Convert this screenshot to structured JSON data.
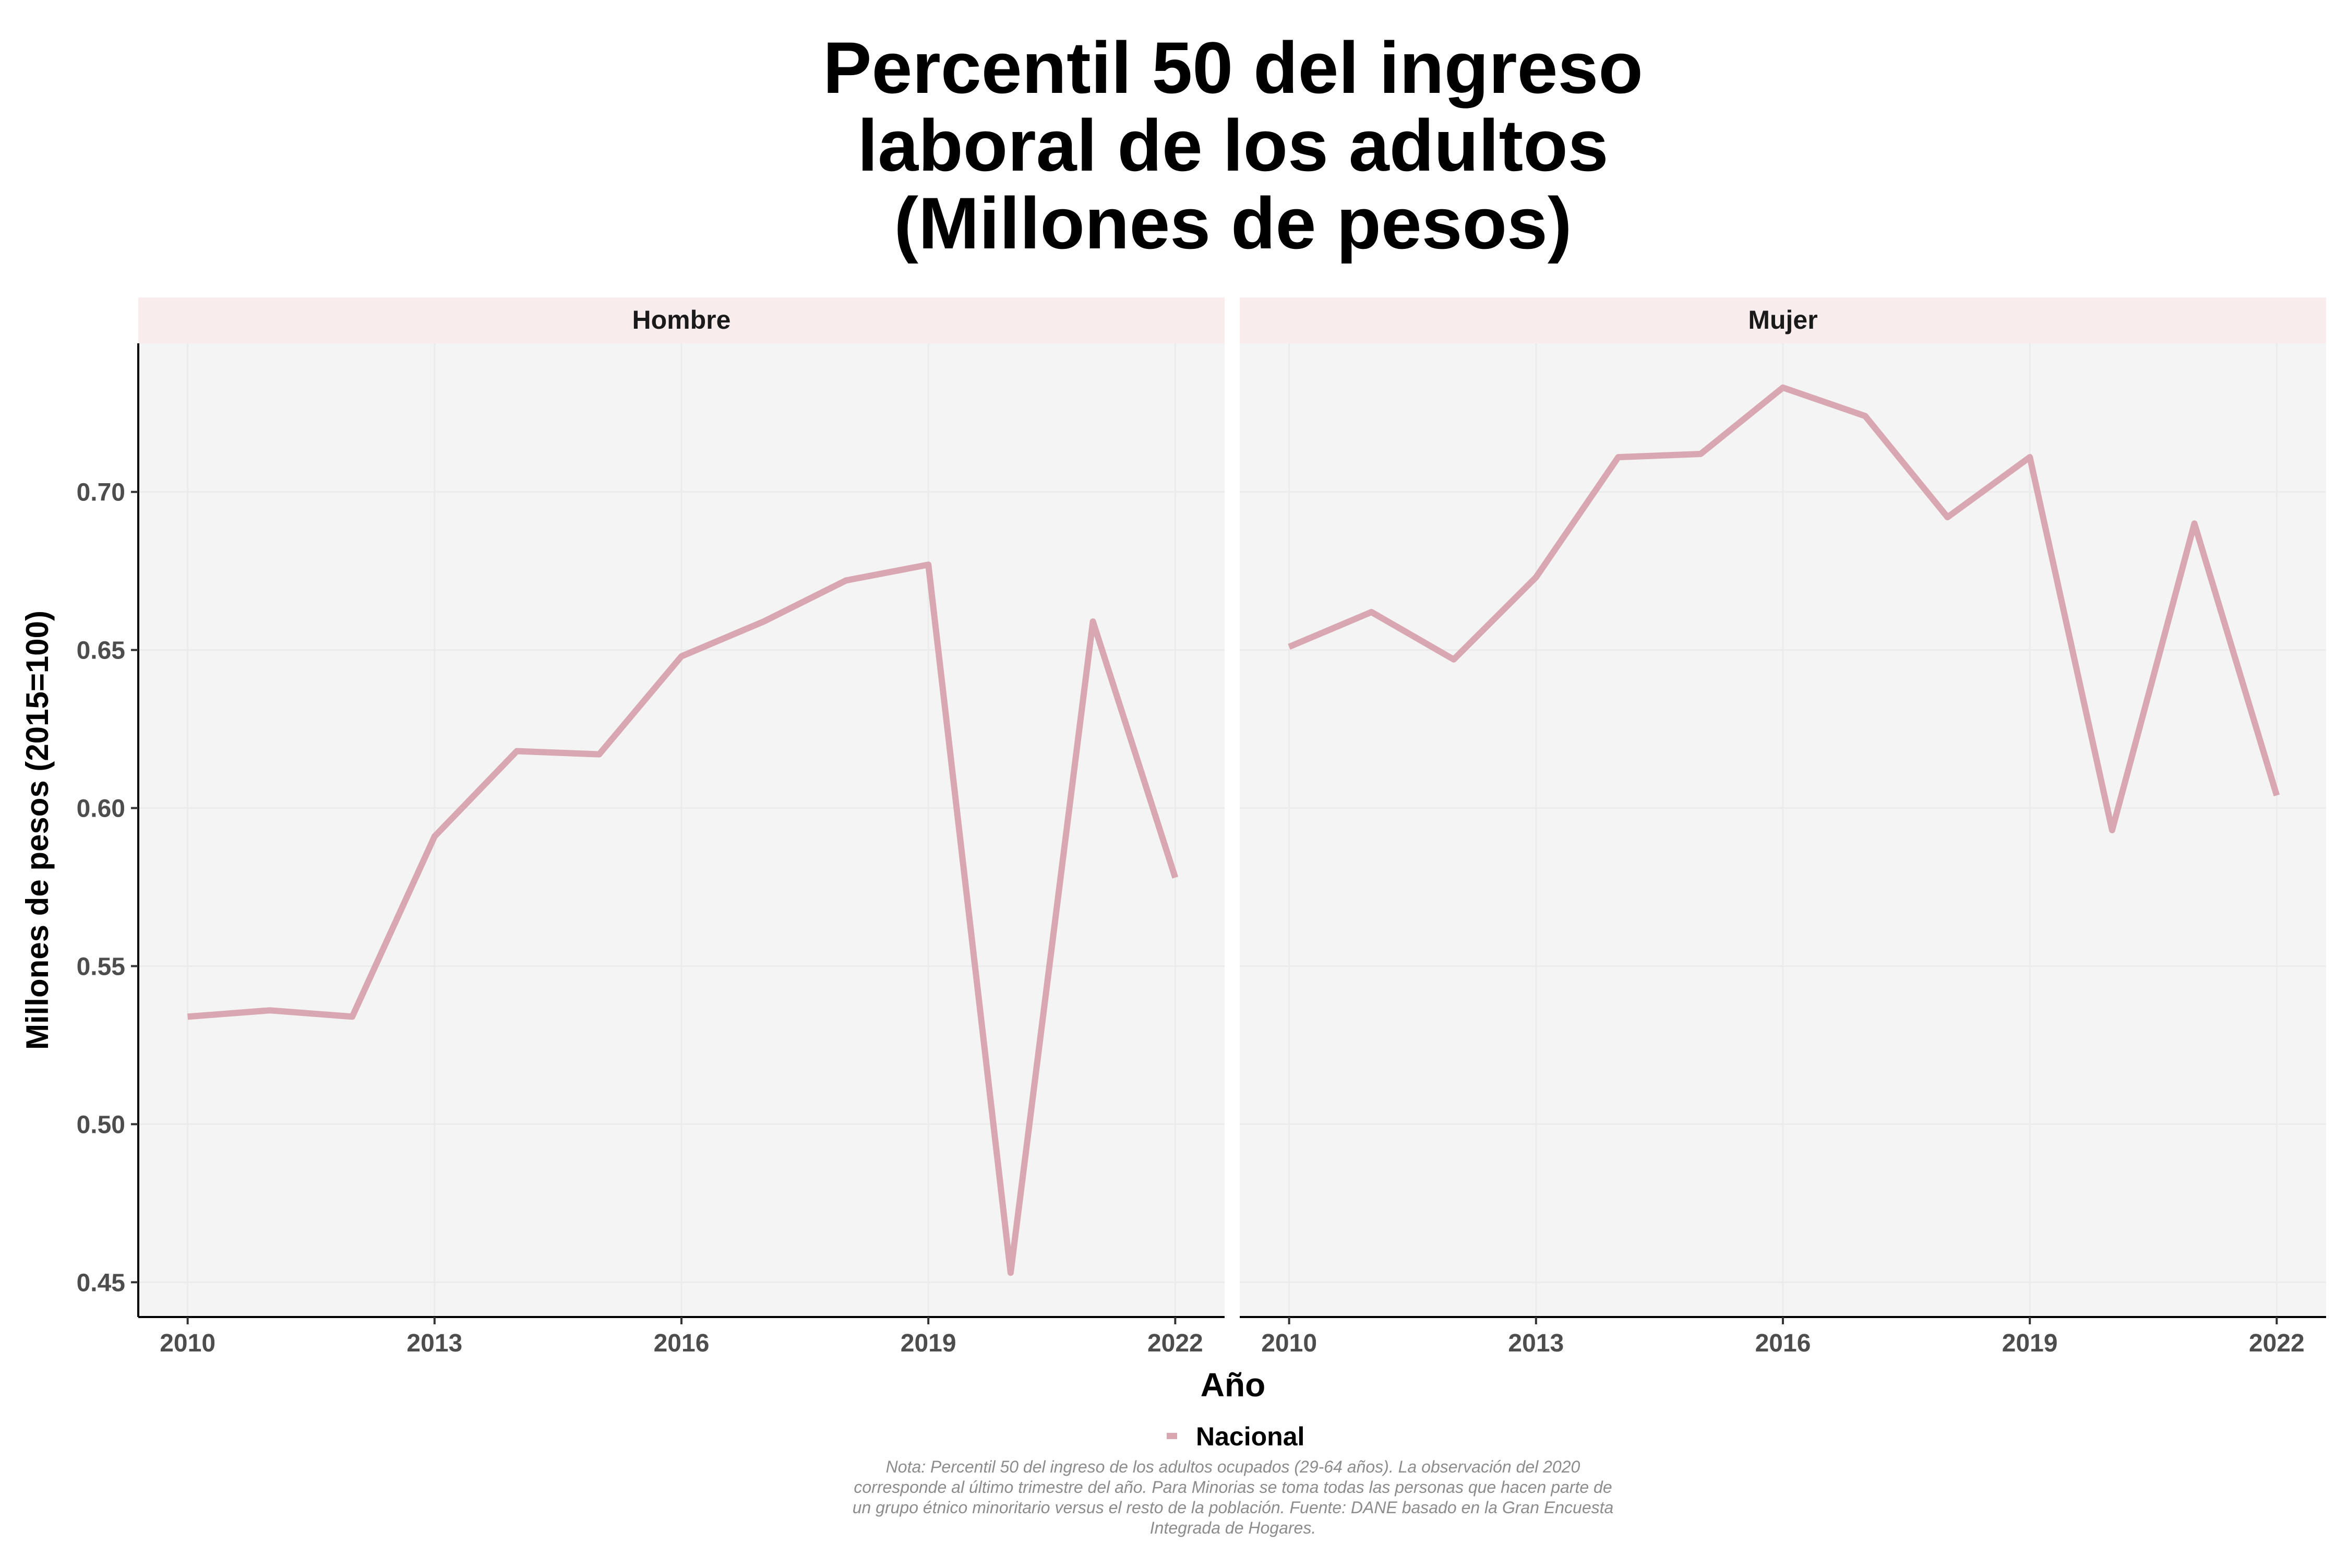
{
  "chart_data": {
    "type": "line",
    "title_lines": [
      "Percentil 50 del ingreso",
      "laboral de los adultos",
      "(Millones de pesos)"
    ],
    "xlabel": "Año",
    "ylabel": "Millones de pesos (2015=100)",
    "x_ticks": [
      2010,
      2013,
      2016,
      2019,
      2022
    ],
    "y_ticks": [
      0.45,
      0.5,
      0.55,
      0.6,
      0.65,
      0.7
    ],
    "y_tick_labels": [
      "0.45",
      "0.50",
      "0.55",
      "0.60",
      "0.65",
      "0.70"
    ],
    "xlim": [
      2009.4,
      2022.6
    ],
    "ylim": [
      0.439,
      0.747
    ],
    "grid": true,
    "legend": {
      "position": "bottom",
      "entries": [
        {
          "name": "Nacional",
          "color": "#d8a7b1"
        }
      ]
    },
    "colors": {
      "line": "#d8a7b1",
      "strip": "#f9ecec",
      "panel": "#f4f4f4",
      "note": "#8c8c8c"
    },
    "x": [
      2010,
      2011,
      2012,
      2013,
      2014,
      2015,
      2016,
      2017,
      2018,
      2019,
      2020,
      2021,
      2022
    ],
    "panels": [
      {
        "name": "Hombre",
        "series": [
          {
            "name": "Nacional",
            "values": [
              0.534,
              0.536,
              0.534,
              0.591,
              0.618,
              0.617,
              0.648,
              0.659,
              0.672,
              0.677,
              0.453,
              0.659,
              0.578
            ]
          }
        ]
      },
      {
        "name": "Mujer",
        "series": [
          {
            "name": "Nacional",
            "values": [
              0.651,
              0.662,
              0.647,
              0.673,
              0.711,
              0.712,
              0.733,
              0.724,
              0.692,
              0.711,
              0.593,
              0.69,
              0.604
            ]
          }
        ]
      }
    ],
    "note_lines": [
      "Nota: Percentil 50 del ingreso de los adultos ocupados (29-64 años). La observación del 2020",
      "corresponde al último trimestre del año. Para Minorias se toma todas las personas que hacen parte de",
      "un grupo étnico minoritario versus el resto de la población. Fuente: DANE basado en la Gran Encuesta",
      "Integrada de Hogares."
    ]
  }
}
